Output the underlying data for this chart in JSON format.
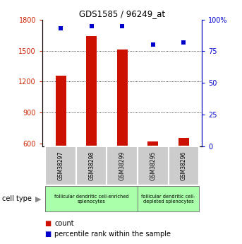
{
  "title": "GDS1585 / 96249_at",
  "samples": [
    "GSM38297",
    "GSM38298",
    "GSM38299",
    "GSM38295",
    "GSM38296"
  ],
  "counts": [
    1260,
    1640,
    1510,
    622,
    660
  ],
  "percentiles": [
    93,
    95,
    95,
    80,
    82
  ],
  "ylim_left": [
    575,
    1800
  ],
  "ylim_right": [
    0,
    100
  ],
  "yticks_left": [
    600,
    900,
    1200,
    1500,
    1800
  ],
  "yticks_right": [
    0,
    25,
    50,
    75,
    100
  ],
  "bar_color": "#cc1100",
  "dot_color": "#0000cc",
  "grid_color": "#000000",
  "group1_label": "follicular dendritic cell-enriched\nsplenocytes",
  "group2_label": "follicular dendritic cell-\ndepleted splenocytes",
  "group1_indices": [
    0,
    1,
    2
  ],
  "group2_indices": [
    3,
    4
  ],
  "cell_type_label": "cell type",
  "legend_count_label": "count",
  "legend_pct_label": "percentile rank within the sample",
  "bar_width": 0.35,
  "bg_color": "#ffffff",
  "group_bg": "#aaffaa",
  "sample_bg": "#cccccc",
  "tick_label_color_left": "#cc2200",
  "tick_label_color_right": "#0000cc"
}
